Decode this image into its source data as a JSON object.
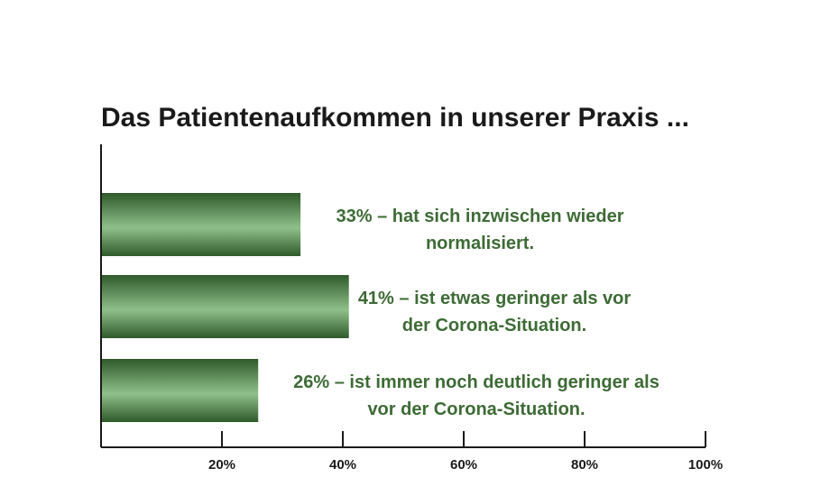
{
  "chart_data": {
    "type": "bar",
    "orientation": "horizontal",
    "title": "Das Patientenaufkommen in unserer Praxis ...",
    "categories": [
      "hat sich inzwischen wieder normalisiert.",
      "ist etwas geringer als vor der Corona-Situation.",
      "ist immer noch deutlich geringer als vor der Corona-Situation."
    ],
    "values": [
      33,
      41,
      26
    ],
    "bar_labels": [
      [
        "33% – hat sich inzwischen wieder",
        "normalisiert."
      ],
      [
        "41% – ist etwas geringer als vor",
        "der Corona-Situation."
      ],
      [
        "26% – ist immer noch deutlich geringer als",
        "vor der Corona-Situation."
      ]
    ],
    "xlim": [
      0,
      100
    ],
    "xticks": [
      20,
      40,
      60,
      80,
      100
    ],
    "xtick_labels": [
      "20%",
      "40%",
      "60%",
      "80%",
      "100%"
    ],
    "grid": false,
    "colors": {
      "bar": "#3d6b35",
      "bar_highlight": "#8fc08a",
      "label": "#3d6b35",
      "axis": "#1a1a1a"
    }
  }
}
